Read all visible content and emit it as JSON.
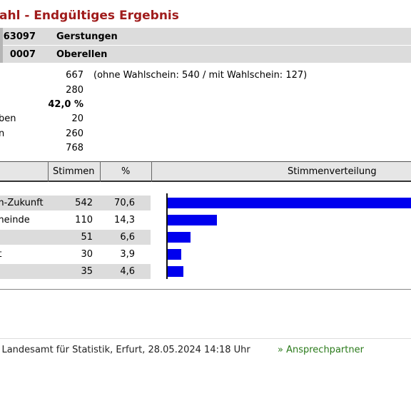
{
  "header": {
    "title": "ahl - Endgültiges Ergebnis"
  },
  "region": [
    {
      "code": "63097",
      "name": "Gerstungen"
    },
    {
      "code": "0007",
      "name": "Oberellen"
    }
  ],
  "stats": {
    "eligible": "667",
    "eligible_note": "(ohne Wahlschein: 540 / mit Wahlschein: 127)",
    "voters": "280",
    "turnout": "42,0 %",
    "row4_label": "ben",
    "row4_value": "20",
    "row5_label": "n",
    "row5_value": "260",
    "row6_value": "768"
  },
  "table": {
    "col_votes": "Stimmen",
    "col_pct": "%",
    "col_dist": "Stimmenverteilung",
    "rows": [
      {
        "party": "m-Zukunft",
        "votes": "542",
        "pct": "70,6",
        "share": 0.706
      },
      {
        "party": "meinde",
        "votes": "110",
        "pct": "14,3",
        "share": 0.143
      },
      {
        "party": "",
        "votes": "51",
        "pct": "6,6",
        "share": 0.066
      },
      {
        "party": "ft",
        "votes": "30",
        "pct": "3,9",
        "share": 0.039
      },
      {
        "party": "",
        "votes": "35",
        "pct": "4,6",
        "share": 0.046
      }
    ],
    "bar_color": "#0000ee"
  },
  "footer": {
    "source": "r Landesamt für Statistik, Erfurt, 28.05.2024 14:18 Uhr",
    "link": "» Ansprechpartner",
    "link_color": "#2a7a1a"
  },
  "colors": {
    "title": "#a01c1c",
    "row_bg": "#dcdcdc"
  }
}
